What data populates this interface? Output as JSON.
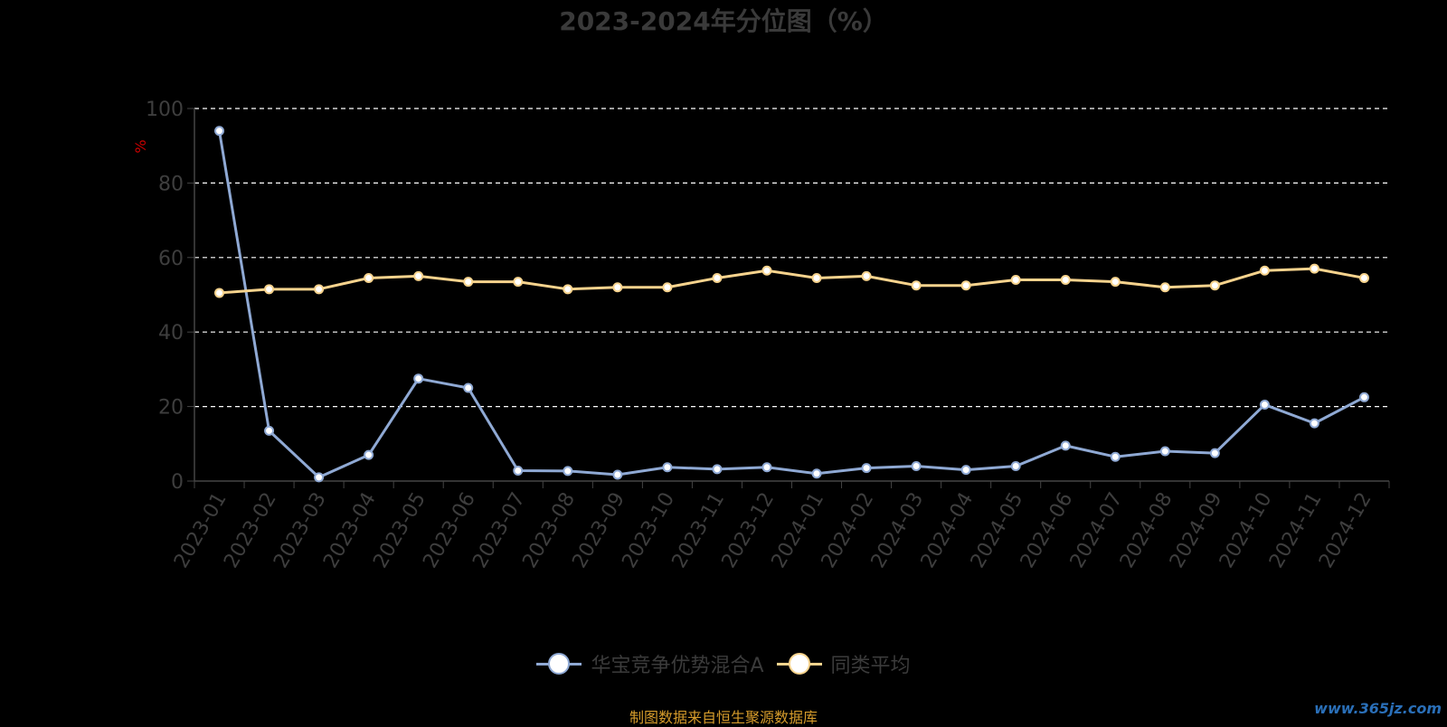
{
  "chart_data": {
    "type": "line",
    "title": "2023-2024年分位图（%）",
    "ylabel": "%",
    "xlabel": "",
    "ylim": [
      0,
      100
    ],
    "yticks": [
      0,
      20,
      40,
      60,
      80,
      100
    ],
    "grid": true,
    "legend_position": "bottom",
    "categories": [
      "2023-01",
      "2023-02",
      "2023-03",
      "2023-04",
      "2023-05",
      "2023-06",
      "2023-07",
      "2023-08",
      "2023-09",
      "2023-10",
      "2023-11",
      "2023-12",
      "2024-01",
      "2024-02",
      "2024-03",
      "2024-04",
      "2024-05",
      "2024-06",
      "2024-07",
      "2024-08",
      "2024-09",
      "2024-10",
      "2024-11",
      "2024-12"
    ],
    "series": [
      {
        "name": "华宝竞争优势混合A",
        "color": "#8fa9d4",
        "values": [
          94,
          13.5,
          1,
          7,
          27.5,
          25,
          2.8,
          2.7,
          1.7,
          3.7,
          3.2,
          3.7,
          2,
          3.5,
          4,
          3,
          4,
          9.5,
          6.5,
          8,
          7.5,
          20.5,
          15.5,
          22.5
        ]
      },
      {
        "name": "同类平均",
        "color": "#f7d38d",
        "values": [
          50.5,
          51.5,
          51.5,
          54.5,
          55,
          53.5,
          53.5,
          51.5,
          52,
          52,
          54.5,
          56.5,
          54.5,
          55,
          52.5,
          52.5,
          54,
          54,
          53.5,
          52,
          52.5,
          56.5,
          57,
          54.5
        ]
      }
    ]
  },
  "footer": {
    "source": "制图数据来自恒生聚源数据库",
    "watermark": "www.365jz.com"
  }
}
